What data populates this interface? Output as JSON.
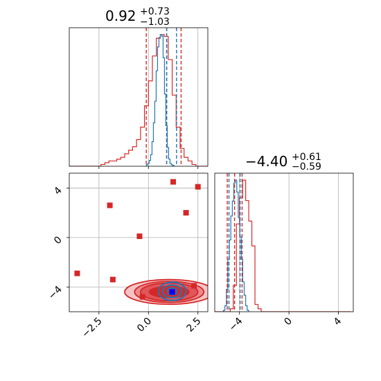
{
  "chart_data": {
    "type": "corner",
    "parameters": [
      {
        "title": {
          "median": "0.92",
          "plus": "+0.73",
          "minus": "−1.03"
        },
        "range": [
          -4.0,
          3.0
        ],
        "ticks": [
          -2.5,
          0.0,
          2.5
        ],
        "tick_labels": [
          "−2.5",
          "0.0",
          "2.5"
        ]
      },
      {
        "title": {
          "median": "−4.40",
          "plus": "+0.61",
          "minus": "−0.59"
        },
        "range": [
          -6.0,
          5.2
        ],
        "ticks": [
          -4,
          0,
          4
        ],
        "tick_labels": [
          "−4",
          "0",
          "4"
        ]
      }
    ],
    "colors": {
      "red": "#d62728",
      "blue": "#1f77b4",
      "truth_marker": "#0000ff",
      "grid": "#b0b0b0"
    },
    "hist_param1": {
      "red_bins": {
        "start": -4.0,
        "width": 0.2,
        "counts": [
          0,
          0,
          0,
          0,
          0,
          0,
          0,
          0,
          1,
          2,
          3,
          3,
          4,
          5,
          7,
          9,
          11,
          15,
          22,
          34,
          48,
          62,
          72,
          74,
          73,
          60,
          40,
          22,
          10,
          5,
          3,
          1,
          0,
          0,
          0
        ]
      },
      "blue_bins": {
        "start": -0.1,
        "width": 0.07,
        "counts": [
          2,
          4,
          8,
          16,
          34,
          60,
          90,
          132,
          165,
          178,
          182,
          180,
          150,
          100,
          56,
          26,
          10,
          4,
          2,
          1
        ]
      },
      "red_quantiles": [
        -0.11,
        0.92,
        1.65
      ],
      "blue_quantiles": [
        0.92,
        1.42
      ]
    },
    "hist_param2": {
      "red_bins": {
        "start": -6.0,
        "width": 0.25,
        "counts": [
          0,
          0,
          0,
          0,
          0,
          2,
          18,
          60,
          78,
          90,
          76,
          62,
          45,
          5,
          2,
          0,
          0,
          0,
          0,
          0,
          0,
          0,
          0,
          0,
          0,
          0,
          0,
          0,
          0,
          0,
          0,
          0,
          0,
          0,
          0,
          0,
          0,
          0,
          0,
          0,
          0,
          0,
          0,
          0
        ]
      },
      "blue_bins": {
        "start": -5.3,
        "width": 0.12,
        "counts": [
          2,
          8,
          30,
          70,
          96,
          128,
          148,
          172,
          176,
          160,
          126,
          100,
          70,
          40,
          22,
          8,
          2
        ]
      },
      "red_quantiles": [
        -4.99,
        -4.4,
        -3.79
      ],
      "blue_quantiles": [
        -4.85,
        -3.95
      ]
    },
    "scatter_points": [
      {
        "x": -3.6,
        "y": -2.9
      },
      {
        "x": -1.95,
        "y": 2.6
      },
      {
        "x": -1.8,
        "y": -3.4
      },
      {
        "x": -0.45,
        "y": 0.1
      },
      {
        "x": -0.3,
        "y": -4.8
      },
      {
        "x": 1.25,
        "y": 4.5
      },
      {
        "x": 2.5,
        "y": 4.1
      },
      {
        "x": 1.9,
        "y": 2.0
      },
      {
        "x": 2.3,
        "y": -3.9
      }
    ],
    "truth_point": {
      "x": 1.2,
      "y": -4.4
    },
    "contours": {
      "red": {
        "center": [
          1.05,
          -4.4
        ],
        "radii": [
          [
            1.0,
            0.45
          ],
          [
            1.45,
            0.72
          ],
          [
            1.75,
            0.85
          ],
          [
            2.25,
            1.0
          ]
        ]
      },
      "blue": {
        "center": [
          1.2,
          -4.35
        ],
        "radii": [
          [
            0.25,
            0.27
          ],
          [
            0.48,
            0.5
          ],
          [
            0.7,
            0.74
          ]
        ]
      }
    }
  }
}
